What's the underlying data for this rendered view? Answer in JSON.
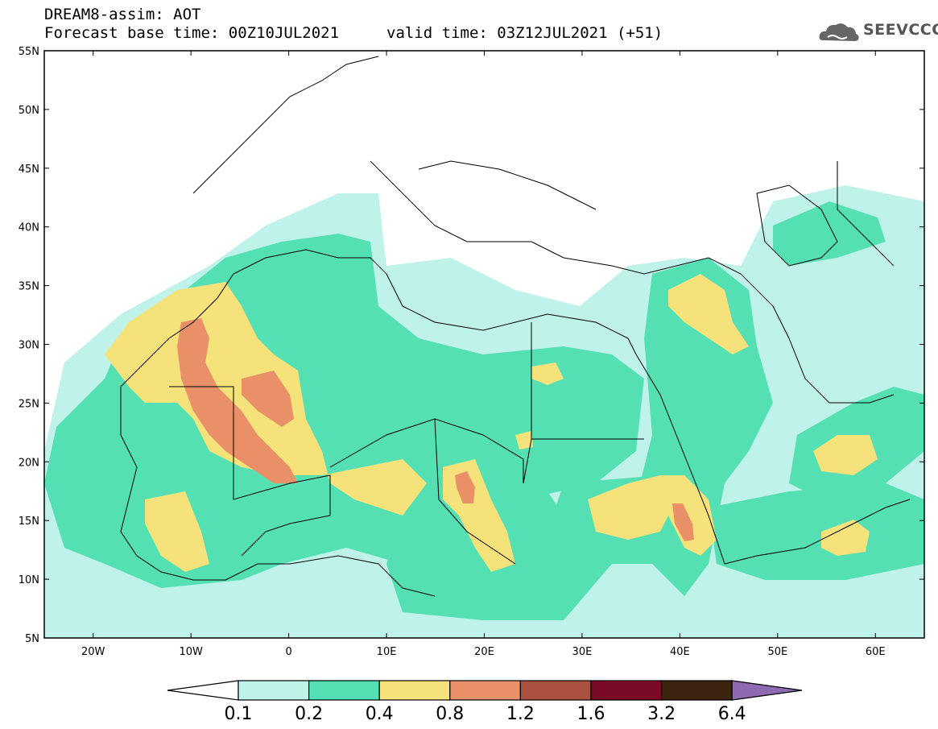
{
  "header": {
    "title": "DREAM8-assim: AOT",
    "base_time": "Forecast base time: 00Z10JUL2021",
    "valid_time": "valid time: 03Z12JUL2021 (+51)",
    "logo_text": "SEEVCCC"
  },
  "axes": {
    "lon_range": [
      -25,
      65
    ],
    "lat_range": [
      5,
      55
    ],
    "lat_ticks": [
      "5N",
      "10N",
      "15N",
      "20N",
      "25N",
      "30N",
      "35N",
      "40N",
      "45N",
      "50N",
      "55N"
    ],
    "lon_ticks": [
      "20W",
      "10W",
      "0",
      "10E",
      "20E",
      "30E",
      "40E",
      "50E",
      "60E"
    ]
  },
  "colorbar": {
    "labels": [
      "0.1",
      "0.2",
      "0.4",
      "0.8",
      "1.2",
      "1.6",
      "3.2",
      "6.4"
    ],
    "colors": [
      "#bff3ea",
      "#55e0b4",
      "#f5e27a",
      "#ea9068",
      "#a9503f",
      "#7a0a25",
      "#3b2410",
      "#8e6bb0"
    ]
  },
  "chart_data": {
    "type": "heatmap",
    "variable": "AOT",
    "levels": [
      0.1,
      0.2,
      0.4,
      0.8,
      1.2,
      1.6,
      3.2,
      6.4
    ],
    "xlim": [
      -25,
      65
    ],
    "ylim": [
      5,
      55
    ]
  }
}
